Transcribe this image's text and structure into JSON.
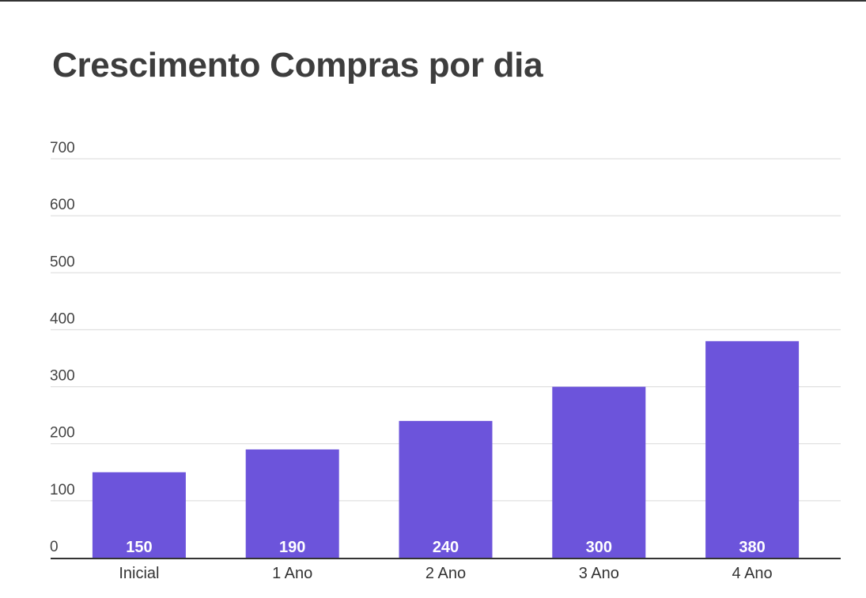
{
  "chart_data": {
    "type": "bar",
    "title": "Crescimento Compras por dia",
    "xlabel": "",
    "ylabel": "",
    "categories": [
      "Inicial",
      "1 Ano",
      "2 Ano",
      "3 Ano",
      "4 Ano"
    ],
    "values": [
      150,
      190,
      240,
      300,
      380
    ],
    "data_labels": [
      "150",
      "190",
      "240",
      "300",
      "380"
    ],
    "ylim": [
      0,
      700
    ],
    "yticks": [
      0,
      100,
      200,
      300,
      400,
      500,
      600,
      700
    ],
    "ytick_labels": [
      "0",
      "100",
      "200",
      "300",
      "400",
      "500",
      "600",
      "700"
    ],
    "grid": true,
    "legend": "none",
    "bar_color": "#6c54db",
    "grid_color": "#d9d9d9",
    "axis_color": "#333333",
    "title_color": "#3d3d3d"
  }
}
